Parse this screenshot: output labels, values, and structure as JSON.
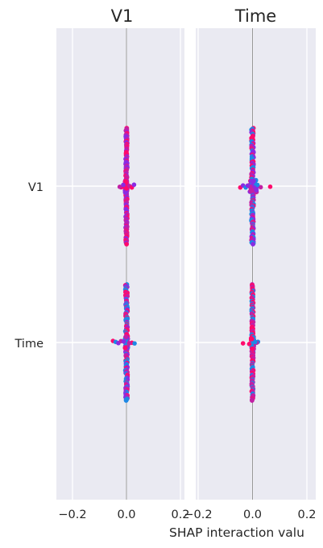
{
  "chart_data": {
    "type": "scatter",
    "subtype": "shap-interaction-summary",
    "panels": [
      {
        "title": "V1",
        "rows": [
          {
            "feature": "V1",
            "min": -0.005,
            "max": 0.003,
            "core_min": -0.003,
            "core_max": 0.003,
            "outliers": [
              -0.02,
              -0.012,
              0.012,
              0.02,
              0.028,
              -0.025
            ],
            "color_mix": [
              "#ff0a6c",
              "#8a2be2",
              "#c220a5"
            ]
          },
          {
            "feature": "Time",
            "min": -0.005,
            "max": 0.005,
            "core_min": -0.004,
            "core_max": 0.004,
            "outliers": [
              -0.05,
              -0.04,
              -0.03,
              -0.02,
              0.02,
              0.03,
              -0.01,
              0.01
            ],
            "color_mix": [
              "#ff0a6c",
              "#1e88e5",
              "#8a2be2",
              "#c220a5"
            ]
          }
        ]
      },
      {
        "title": "Time",
        "rows": [
          {
            "feature": "V1",
            "min": -0.01,
            "max": 0.015,
            "core_min": -0.004,
            "core_max": 0.004,
            "outliers": [
              -0.045,
              -0.035,
              -0.025,
              0.03,
              0.065,
              -0.018,
              0.018
            ],
            "color_mix": [
              "#ff0a6c",
              "#8a2be2",
              "#1e88e5",
              "#c220a5"
            ]
          },
          {
            "feature": "Time",
            "min": -0.005,
            "max": 0.005,
            "core_min": -0.003,
            "core_max": 0.003,
            "outliers": [
              -0.035,
              0.02,
              0.015,
              -0.012,
              0.01
            ],
            "color_mix": [
              "#ff0a6c",
              "#1e88e5",
              "#c220a5"
            ]
          }
        ]
      }
    ],
    "xlabel": "SHAP interaction valu",
    "xlim": [
      -0.2,
      0.2
    ],
    "xticks": [
      -0.2,
      0.0,
      0.2
    ],
    "xtick_labels": [
      "−0.2",
      "0.0",
      "0.2"
    ],
    "y_categories": [
      "V1",
      "Time"
    ],
    "grid": true,
    "background": "#eaeaf2",
    "colors": {
      "high": "#ff0a6c",
      "low": "#1e88e5",
      "mid": "#8a2be2"
    }
  }
}
